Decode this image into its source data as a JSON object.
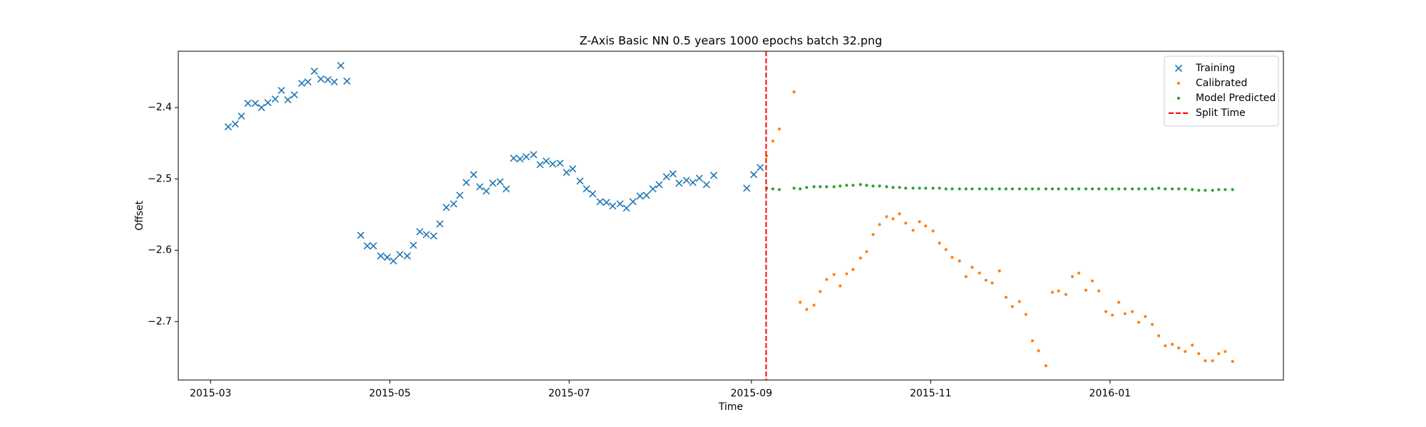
{
  "chart_data": {
    "type": "scatter",
    "title": "Z-Axis Basic NN 0.5 years 1000 epochs batch 32.png",
    "x_label": "Time",
    "y_label": "Offset",
    "xlim": [
      16484,
      16860
    ],
    "ylim": [
      -2.782,
      -2.321
    ],
    "xticks": [
      {
        "value": 16495,
        "label": "2015-03"
      },
      {
        "value": 16556,
        "label": "2015-05"
      },
      {
        "value": 16617,
        "label": "2015-07"
      },
      {
        "value": 16679,
        "label": "2015-09"
      },
      {
        "value": 16740,
        "label": "2015-11"
      },
      {
        "value": 16801,
        "label": "2016-01"
      }
    ],
    "yticks": [
      {
        "value": -2.4,
        "label": "−2.4"
      },
      {
        "value": -2.5,
        "label": "−2.5"
      },
      {
        "value": -2.6,
        "label": "−2.6"
      },
      {
        "value": -2.7,
        "label": "−2.7"
      }
    ],
    "legend": "upper right",
    "series": [
      {
        "name": "Training",
        "color": "#1f77b4",
        "marker": "x",
        "x": [
          16501,
          16503.4,
          16505.5,
          16507.7,
          16510.2,
          16512.3,
          16514.5,
          16517,
          16519.1,
          16521.3,
          16523.5,
          16526,
          16528.1,
          16530.3,
          16532.5,
          16534.9,
          16537.1,
          16539.3,
          16541.4,
          16546.1,
          16548.3,
          16550.4,
          16552.9,
          16555.1,
          16557.2,
          16559.4,
          16561.9,
          16564,
          16566.2,
          16568.4,
          16570.9,
          16573,
          16575.2,
          16577.7,
          16579.8,
          16582,
          16584.5,
          16586.6,
          16588.8,
          16591,
          16593.5,
          16595.6,
          16598.1,
          16600.3,
          16602.4,
          16604.9,
          16607.1,
          16609.2,
          16611.4,
          16613.9,
          16616.1,
          16618.2,
          16620.7,
          16622.9,
          16625,
          16627.5,
          16629.7,
          16631.8,
          16634.3,
          16636.5,
          16638.7,
          16641.1,
          16643.3,
          16645.5,
          16647.6,
          16650.1,
          16652.3,
          16654.4,
          16656.9,
          16659.1,
          16661.3,
          16663.7,
          16666.2,
          16677.4,
          16679.8,
          16682
        ],
        "values": [
          -2.427,
          -2.423,
          -2.412,
          -2.394,
          -2.394,
          -2.4,
          -2.393,
          -2.388,
          -2.376,
          -2.389,
          -2.382,
          -2.366,
          -2.364,
          -2.349,
          -2.36,
          -2.361,
          -2.364,
          -2.341,
          -2.363,
          -2.579,
          -2.594,
          -2.594,
          -2.608,
          -2.61,
          -2.615,
          -2.606,
          -2.608,
          -2.593,
          -2.574,
          -2.578,
          -2.58,
          -2.563,
          -2.54,
          -2.535,
          -2.523,
          -2.505,
          -2.494,
          -2.511,
          -2.517,
          -2.506,
          -2.504,
          -2.514,
          -2.471,
          -2.472,
          -2.469,
          -2.466,
          -2.48,
          -2.475,
          -2.479,
          -2.478,
          -2.491,
          -2.486,
          -2.503,
          -2.514,
          -2.521,
          -2.532,
          -2.533,
          -2.538,
          -2.535,
          -2.541,
          -2.532,
          -2.524,
          -2.523,
          -2.514,
          -2.508,
          -2.497,
          -2.493,
          -2.506,
          -2.502,
          -2.505,
          -2.499,
          -2.508,
          -2.495,
          -2.513,
          -2.494,
          -2.484
        ]
      },
      {
        "name": "Calibrated",
        "color": "#ff7f0e",
        "marker": "dot",
        "x": [
          16684.2,
          16686.3,
          16688.5,
          16693.5,
          16695.6,
          16697.8,
          16700.3,
          16702.4,
          16704.6,
          16707.1,
          16709.2,
          16711.4,
          16713.6,
          16716.1,
          16718.2,
          16720.4,
          16722.6,
          16725,
          16727.2,
          16729.4,
          16731.5,
          16734,
          16736.2,
          16738.3,
          16740.8,
          16743,
          16745.2,
          16747.3,
          16749.8,
          16752,
          16754.1,
          16756.6,
          16758.8,
          16760.9,
          16763.4,
          16765.6,
          16767.8,
          16770.2,
          16772.4,
          16774.6,
          16776.7,
          16779.2,
          16781.4,
          16783.5,
          16786,
          16788.2,
          16790.4,
          16792.8,
          16795,
          16797.2,
          16799.6,
          16801.8,
          16804,
          16806.1,
          16808.6,
          16810.8,
          16813,
          16815.4,
          16817.6,
          16819.8,
          16822.2,
          16824.4,
          16826.6,
          16829,
          16831.2,
          16833.4,
          16835.9,
          16838,
          16840.2,
          16842.7
        ],
        "values": [
          -2.468,
          -2.447,
          -2.43,
          -2.378,
          -2.673,
          -2.683,
          -2.677,
          -2.658,
          -2.641,
          -2.634,
          -2.65,
          -2.633,
          -2.627,
          -2.611,
          -2.602,
          -2.578,
          -2.564,
          -2.553,
          -2.556,
          -2.549,
          -2.562,
          -2.572,
          -2.56,
          -2.566,
          -2.573,
          -2.59,
          -2.599,
          -2.61,
          -2.615,
          -2.637,
          -2.624,
          -2.632,
          -2.642,
          -2.646,
          -2.629,
          -2.666,
          -2.679,
          -2.672,
          -2.69,
          -2.727,
          -2.741,
          -2.762,
          -2.659,
          -2.657,
          -2.662,
          -2.637,
          -2.632,
          -2.656,
          -2.643,
          -2.657,
          -2.686,
          -2.691,
          -2.673,
          -2.689,
          -2.686,
          -2.701,
          -2.693,
          -2.704,
          -2.72,
          -2.734,
          -2.732,
          -2.737,
          -2.742,
          -2.733,
          -2.745,
          -2.755,
          -2.755,
          -2.745,
          -2.742,
          -2.756
        ]
      },
      {
        "name": "Model Predicted",
        "color": "#2ca02c",
        "marker": "dot",
        "x": [
          16684.2,
          16686.3,
          16688.5,
          16693.5,
          16695.6,
          16697.8,
          16700.3,
          16702.4,
          16704.6,
          16707.1,
          16709.2,
          16711.4,
          16713.6,
          16716.1,
          16718.2,
          16720.4,
          16722.6,
          16725,
          16727.2,
          16729.4,
          16731.5,
          16734,
          16736.2,
          16738.3,
          16740.8,
          16743,
          16745.2,
          16747.3,
          16749.8,
          16752,
          16754.1,
          16756.6,
          16758.8,
          16760.9,
          16763.4,
          16765.6,
          16767.8,
          16770.2,
          16772.4,
          16774.6,
          16776.7,
          16779.2,
          16781.4,
          16783.5,
          16786,
          16788.2,
          16790.4,
          16792.8,
          16795,
          16797.2,
          16799.6,
          16801.8,
          16804,
          16806.1,
          16808.6,
          16810.8,
          16813,
          16815.4,
          16817.6,
          16819.8,
          16822.2,
          16824.4,
          16826.6,
          16829,
          16831.2,
          16833.4,
          16835.9,
          16838,
          16840.2,
          16842.7
        ],
        "values": [
          -2.513,
          -2.514,
          -2.515,
          -2.513,
          -2.514,
          -2.512,
          -2.511,
          -2.511,
          -2.511,
          -2.511,
          -2.51,
          -2.509,
          -2.509,
          -2.508,
          -2.509,
          -2.51,
          -2.51,
          -2.511,
          -2.512,
          -2.512,
          -2.513,
          -2.513,
          -2.513,
          -2.513,
          -2.513,
          -2.513,
          -2.514,
          -2.514,
          -2.514,
          -2.514,
          -2.514,
          -2.514,
          -2.514,
          -2.514,
          -2.514,
          -2.514,
          -2.514,
          -2.514,
          -2.514,
          -2.514,
          -2.514,
          -2.514,
          -2.514,
          -2.514,
          -2.514,
          -2.514,
          -2.514,
          -2.514,
          -2.514,
          -2.514,
          -2.514,
          -2.514,
          -2.514,
          -2.514,
          -2.514,
          -2.514,
          -2.514,
          -2.514,
          -2.513,
          -2.514,
          -2.514,
          -2.514,
          -2.514,
          -2.515,
          -2.516,
          -2.516,
          -2.516,
          -2.515,
          -2.515,
          -2.515
        ]
      }
    ],
    "split": {
      "name": "Split Time",
      "x": 16684,
      "color": "#ff0000",
      "style": "dashed"
    }
  }
}
